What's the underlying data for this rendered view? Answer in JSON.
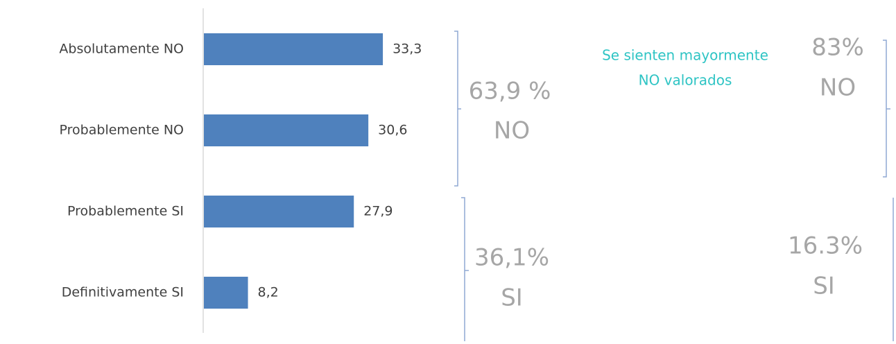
{
  "chart_data": {
    "type": "barh",
    "categories": [
      "Absolutamente NO",
      "Probablemente NO",
      "Probablemente SI",
      "Definitivamente SI"
    ],
    "values": [
      33.3,
      30.6,
      27.9,
      8.2
    ],
    "value_labels": [
      "33,3",
      "30,6",
      "27,9",
      "8,2"
    ],
    "color": "#4f81bd",
    "annotations": [
      "63,9 %",
      "NO",
      "36,1%",
      "SI",
      "Se sienten mayormente",
      "NO valorados",
      "83%",
      "NO",
      "16.3%",
      "SI"
    ]
  }
}
